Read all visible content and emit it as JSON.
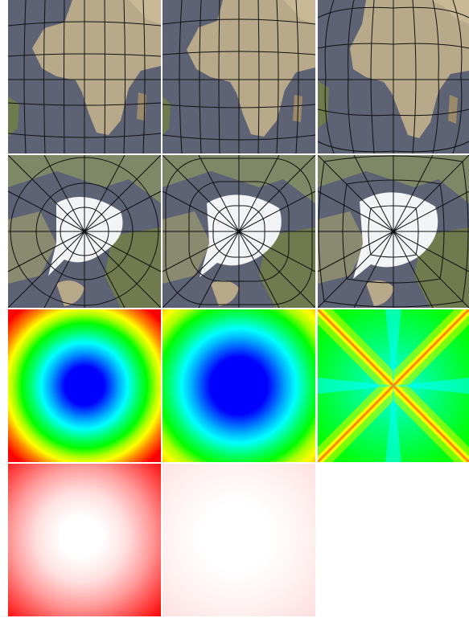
{
  "figure": {
    "rows": [
      {
        "name": "africa-maps",
        "panels": [
          {
            "name": "africa-map-a",
            "kind": "map",
            "region": "africa",
            "grid_style": "curved"
          },
          {
            "name": "africa-map-b",
            "kind": "map",
            "region": "africa",
            "grid_style": "curved"
          },
          {
            "name": "africa-map-c",
            "kind": "map",
            "region": "africa",
            "grid_style": "warped"
          }
        ]
      },
      {
        "name": "polar-maps",
        "panels": [
          {
            "name": "polar-map-a",
            "kind": "map",
            "region": "north-pole",
            "grid_style": "circular"
          },
          {
            "name": "polar-map-b",
            "kind": "map",
            "region": "north-pole",
            "grid_style": "rounded-square"
          },
          {
            "name": "polar-map-c",
            "kind": "map",
            "region": "north-pole",
            "grid_style": "square"
          }
        ]
      },
      {
        "name": "distortion-heatmaps",
        "panels": [
          {
            "name": "heatmap-a",
            "kind": "heatmap",
            "colormap": "jet",
            "pattern": "radial"
          },
          {
            "name": "heatmap-b",
            "kind": "heatmap",
            "colormap": "jet",
            "pattern": "rounded-square"
          },
          {
            "name": "heatmap-c",
            "kind": "heatmap",
            "colormap": "jet",
            "pattern": "diagonal-x"
          }
        ]
      },
      {
        "name": "error-heatmaps",
        "panels": [
          {
            "name": "red-heatmap-a",
            "kind": "heatmap",
            "colormap": "white-red",
            "intensity": "strong"
          },
          {
            "name": "red-heatmap-b",
            "kind": "heatmap",
            "colormap": "white-red",
            "intensity": "faint"
          }
        ]
      }
    ],
    "colors": {
      "ocean": "#5d6275",
      "land": "#b8a98a",
      "land_green": "#6f7a4e",
      "ice": "#f2f4f6",
      "grid_line": "#111111",
      "jet_center": "#0000ff",
      "jet_cyan": "#00ffff",
      "jet_green": "#00ff00",
      "jet_yellow": "#ffff00",
      "jet_red": "#ff0000",
      "red_strong": "#ff0000",
      "white": "#ffffff"
    }
  }
}
